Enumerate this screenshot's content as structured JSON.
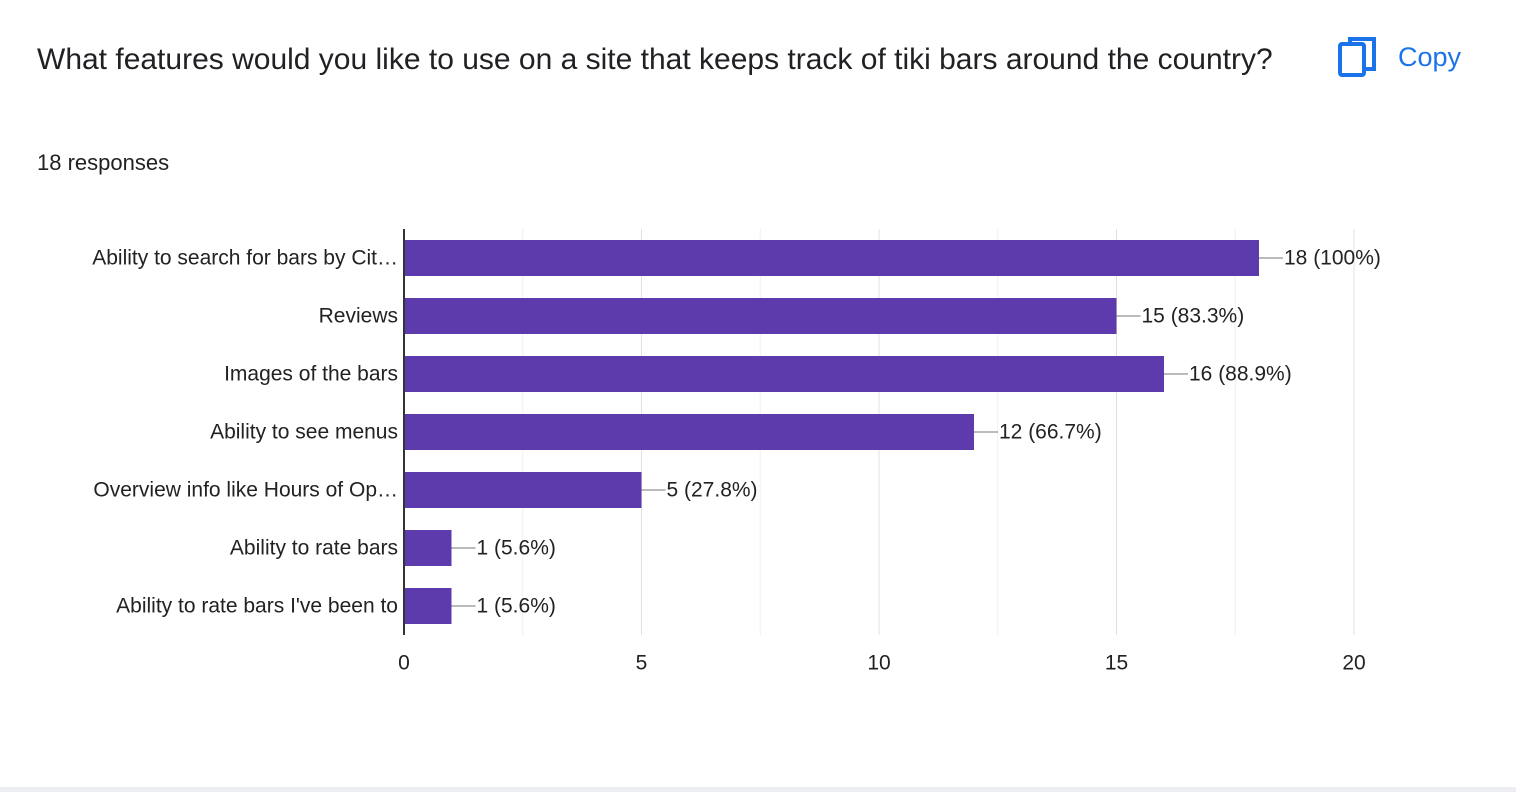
{
  "header": {
    "question": "What features would you like to use on a site that keeps track of tiki bars around the country?",
    "responses": "18 responses",
    "copy_label": "Copy",
    "copy_icon": "copy-icon"
  },
  "colors": {
    "bar": "#5e3bad",
    "accent": "#1a73e8",
    "grid": "#e8e8e8",
    "text": "#202124"
  },
  "chart_data": {
    "type": "bar",
    "orientation": "horizontal",
    "categories": [
      "Ability to search for bars by Cit…",
      "Reviews",
      "Images of the bars",
      "Ability to see menus",
      "Overview info like Hours of Op…",
      "Ability to rate bars",
      "Ability to rate bars I've been to"
    ],
    "values": [
      18,
      15,
      16,
      12,
      5,
      1,
      1
    ],
    "data_labels": [
      "18 (100%)",
      "15 (83.3%)",
      "16 (88.9%)",
      "12 (66.7%)",
      "5 (27.8%)",
      "1 (5.6%)",
      "1 (5.6%)"
    ],
    "xlim": [
      0,
      20
    ],
    "xticks": [
      0,
      5,
      10,
      15,
      20
    ],
    "xtick_labels": [
      "0",
      "5",
      "10",
      "15",
      "20"
    ],
    "grid": true,
    "legend": "none"
  }
}
